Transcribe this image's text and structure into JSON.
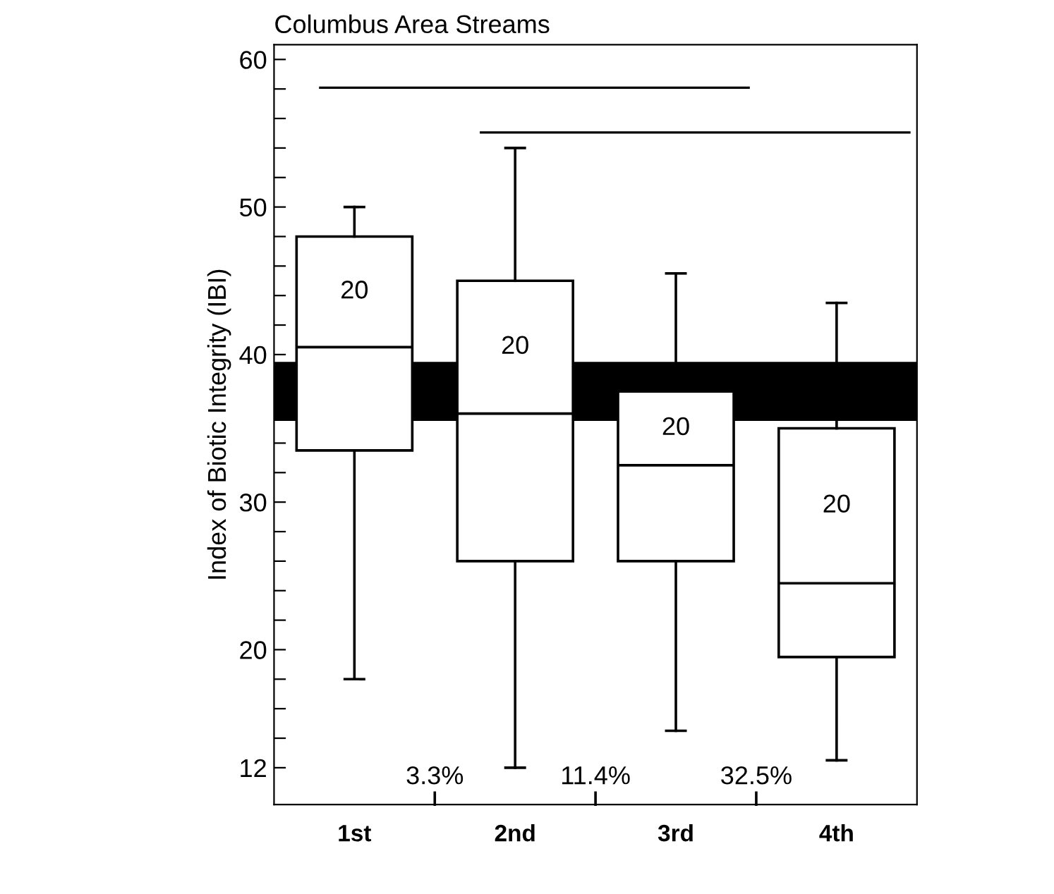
{
  "chart_data": {
    "type": "box",
    "title": "Columbus Area Streams",
    "ylabel": "Index of Biotic Integrity (IBI)",
    "categories": [
      "1st",
      "2nd",
      "3rd",
      "4th"
    ],
    "boxes": [
      {
        "low": 18,
        "q1": 33.5,
        "median": 40.5,
        "q3": 48,
        "high": 50
      },
      {
        "low": 12,
        "q1": 26,
        "median": 36,
        "q3": 45,
        "high": 54
      },
      {
        "low": 14.5,
        "q1": 26,
        "median": 32.5,
        "q3": 37.5,
        "high": 45.5
      },
      {
        "low": 12.5,
        "q1": 19.5,
        "median": 24.5,
        "q3": 35,
        "high": 43.5
      }
    ],
    "color": "#ffffff",
    "bands": [
      {
        "axis": "y",
        "from": 35.5,
        "to": 39.5,
        "color": "#000000"
      }
    ],
    "ylim": [
      9.5,
      61
    ],
    "yticks": [
      12,
      {
        "value": 14,
        "label": null
      },
      {
        "value": 16,
        "label": null
      },
      {
        "value": 18,
        "label": null
      },
      20,
      {
        "value": 22,
        "label": null
      },
      {
        "value": 24,
        "label": null
      },
      {
        "value": 26,
        "label": null
      },
      {
        "value": 28,
        "label": null
      },
      30,
      {
        "value": 32,
        "label": null
      },
      {
        "value": 34,
        "label": null
      },
      {
        "value": 36,
        "label": null
      },
      {
        "value": 38,
        "label": null
      },
      40,
      {
        "value": 42,
        "label": null
      },
      {
        "value": 44,
        "label": null
      },
      {
        "value": 46,
        "label": null
      },
      {
        "value": 48,
        "label": null
      },
      50,
      {
        "value": 52,
        "label": null
      },
      {
        "value": 54,
        "label": null
      },
      {
        "value": 56,
        "label": null
      },
      {
        "value": 58,
        "label": null
      },
      60
    ],
    "annotations": [
      "20",
      "20",
      "20",
      "20",
      "3.3%",
      "11.4%",
      "32.5%"
    ],
    "grid": false
  }
}
